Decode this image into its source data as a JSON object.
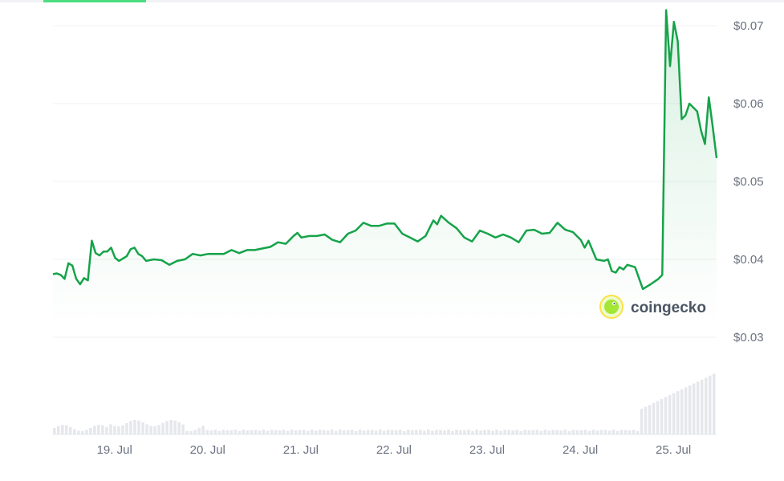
{
  "watermark": {
    "brand": "coingecko"
  },
  "colors": {
    "line": "#16a34a",
    "accent_tab": "#4ade80",
    "grid": "#eef0f3",
    "volume_bar": "#e5e7eb",
    "tick_text": "#6b7280"
  },
  "chart_data": {
    "type": "line",
    "title": "",
    "xlabel": "",
    "ylabel": "",
    "grid": true,
    "area_fill": true,
    "ylim": [
      0.03,
      0.0725
    ],
    "y_ticks": [
      {
        "value": 0.03,
        "label": "$0.03"
      },
      {
        "value": 0.04,
        "label": "$0.04"
      },
      {
        "value": 0.05,
        "label": "$0.05"
      },
      {
        "value": 0.06,
        "label": "$0.06"
      },
      {
        "value": 0.07,
        "label": "$0.07"
      }
    ],
    "xlim": [
      "2024-07-18T10:00",
      "2024-07-25T13:00"
    ],
    "x_ticks": [
      {
        "value": "2024-07-19T00:00",
        "label": "19. Jul"
      },
      {
        "value": "2024-07-20T00:00",
        "label": "20. Jul"
      },
      {
        "value": "2024-07-21T00:00",
        "label": "21. Jul"
      },
      {
        "value": "2024-07-22T00:00",
        "label": "22. Jul"
      },
      {
        "value": "2024-07-23T00:00",
        "label": "23. Jul"
      },
      {
        "value": "2024-07-24T00:00",
        "label": "24. Jul"
      },
      {
        "value": "2024-07-25T00:00",
        "label": "25. Jul"
      }
    ],
    "series": [
      {
        "points": [
          [
            "2024-07-18T10:00",
            0.0381
          ],
          [
            "2024-07-18T11:00",
            0.0382
          ],
          [
            "2024-07-18T12:00",
            0.038
          ],
          [
            "2024-07-18T13:00",
            0.0375
          ],
          [
            "2024-07-18T14:00",
            0.0395
          ],
          [
            "2024-07-18T15:00",
            0.0392
          ],
          [
            "2024-07-18T16:00",
            0.0375
          ],
          [
            "2024-07-18T17:00",
            0.0368
          ],
          [
            "2024-07-18T18:00",
            0.0376
          ],
          [
            "2024-07-18T19:00",
            0.0373
          ],
          [
            "2024-07-18T20:00",
            0.0424
          ],
          [
            "2024-07-18T21:00",
            0.0408
          ],
          [
            "2024-07-18T22:00",
            0.0405
          ],
          [
            "2024-07-18T23:00",
            0.041
          ],
          [
            "2024-07-19T00:00",
            0.041
          ],
          [
            "2024-07-19T01:00",
            0.0415
          ],
          [
            "2024-07-19T02:00",
            0.0402
          ],
          [
            "2024-07-19T03:00",
            0.0398
          ],
          [
            "2024-07-19T04:00",
            0.0401
          ],
          [
            "2024-07-19T05:00",
            0.0404
          ],
          [
            "2024-07-19T06:00",
            0.0413
          ],
          [
            "2024-07-19T07:00",
            0.0415
          ],
          [
            "2024-07-19T08:00",
            0.0407
          ],
          [
            "2024-07-19T09:00",
            0.0404
          ],
          [
            "2024-07-19T10:00",
            0.0398
          ],
          [
            "2024-07-19T12:00",
            0.04
          ],
          [
            "2024-07-19T14:00",
            0.0399
          ],
          [
            "2024-07-19T16:00",
            0.0393
          ],
          [
            "2024-07-19T18:00",
            0.0398
          ],
          [
            "2024-07-19T20:00",
            0.04
          ],
          [
            "2024-07-19T22:00",
            0.0407
          ],
          [
            "2024-07-20T00:00",
            0.0405
          ],
          [
            "2024-07-20T02:00",
            0.0407
          ],
          [
            "2024-07-20T04:00",
            0.0407
          ],
          [
            "2024-07-20T06:00",
            0.0407
          ],
          [
            "2024-07-20T08:00",
            0.0412
          ],
          [
            "2024-07-20T10:00",
            0.0408
          ],
          [
            "2024-07-20T12:00",
            0.0412
          ],
          [
            "2024-07-20T14:00",
            0.0412
          ],
          [
            "2024-07-20T16:00",
            0.0414
          ],
          [
            "2024-07-20T18:00",
            0.0416
          ],
          [
            "2024-07-20T20:00",
            0.0422
          ],
          [
            "2024-07-20T22:00",
            0.042
          ],
          [
            "2024-07-21T00:00",
            0.043
          ],
          [
            "2024-07-21T01:00",
            0.0434
          ],
          [
            "2024-07-21T02:00",
            0.0428
          ],
          [
            "2024-07-21T04:00",
            0.043
          ],
          [
            "2024-07-21T06:00",
            0.043
          ],
          [
            "2024-07-21T08:00",
            0.0432
          ],
          [
            "2024-07-21T10:00",
            0.0425
          ],
          [
            "2024-07-21T12:00",
            0.0422
          ],
          [
            "2024-07-21T14:00",
            0.0433
          ],
          [
            "2024-07-21T16:00",
            0.0437
          ],
          [
            "2024-07-21T18:00",
            0.0447
          ],
          [
            "2024-07-21T20:00",
            0.0443
          ],
          [
            "2024-07-21T22:00",
            0.0443
          ],
          [
            "2024-07-22T00:00",
            0.0446
          ],
          [
            "2024-07-22T02:00",
            0.0446
          ],
          [
            "2024-07-22T04:00",
            0.0433
          ],
          [
            "2024-07-22T06:00",
            0.0428
          ],
          [
            "2024-07-22T08:00",
            0.0423
          ],
          [
            "2024-07-22T10:00",
            0.043
          ],
          [
            "2024-07-22T12:00",
            0.045
          ],
          [
            "2024-07-22T13:00",
            0.0445
          ],
          [
            "2024-07-22T14:00",
            0.0456
          ],
          [
            "2024-07-22T16:00",
            0.0447
          ],
          [
            "2024-07-22T18:00",
            0.044
          ],
          [
            "2024-07-22T20:00",
            0.0428
          ],
          [
            "2024-07-22T22:00",
            0.0423
          ],
          [
            "2024-07-23T00:00",
            0.0437
          ],
          [
            "2024-07-23T02:00",
            0.0433
          ],
          [
            "2024-07-23T04:00",
            0.0428
          ],
          [
            "2024-07-23T06:00",
            0.0432
          ],
          [
            "2024-07-23T08:00",
            0.0428
          ],
          [
            "2024-07-23T10:00",
            0.0422
          ],
          [
            "2024-07-23T12:00",
            0.0437
          ],
          [
            "2024-07-23T14:00",
            0.0438
          ],
          [
            "2024-07-23T16:00",
            0.0433
          ],
          [
            "2024-07-23T18:00",
            0.0434
          ],
          [
            "2024-07-23T20:00",
            0.0447
          ],
          [
            "2024-07-23T22:00",
            0.0438
          ],
          [
            "2024-07-24T00:00",
            0.0435
          ],
          [
            "2024-07-24T02:00",
            0.0425
          ],
          [
            "2024-07-24T03:00",
            0.0415
          ],
          [
            "2024-07-24T04:00",
            0.0424
          ],
          [
            "2024-07-24T06:00",
            0.04
          ],
          [
            "2024-07-24T08:00",
            0.0398
          ],
          [
            "2024-07-24T09:00",
            0.04
          ],
          [
            "2024-07-24T10:00",
            0.0385
          ],
          [
            "2024-07-24T11:00",
            0.0383
          ],
          [
            "2024-07-24T12:00",
            0.039
          ],
          [
            "2024-07-24T13:00",
            0.0387
          ],
          [
            "2024-07-24T14:00",
            0.0393
          ],
          [
            "2024-07-24T16:00",
            0.039
          ],
          [
            "2024-07-24T18:00",
            0.0362
          ],
          [
            "2024-07-24T20:00",
            0.0368
          ],
          [
            "2024-07-24T22:00",
            0.0375
          ],
          [
            "2024-07-24T23:00",
            0.038
          ],
          [
            "2024-07-25T00:00",
            0.072
          ],
          [
            "2024-07-25T01:00",
            0.0648
          ],
          [
            "2024-07-25T02:00",
            0.0705
          ],
          [
            "2024-07-25T03:00",
            0.068
          ],
          [
            "2024-07-25T04:00",
            0.058
          ],
          [
            "2024-07-25T05:00",
            0.0585
          ],
          [
            "2024-07-25T06:00",
            0.06
          ],
          [
            "2024-07-25T07:00",
            0.0595
          ],
          [
            "2024-07-25T08:00",
            0.059
          ],
          [
            "2024-07-25T09:00",
            0.0565
          ],
          [
            "2024-07-25T10:00",
            0.0548
          ],
          [
            "2024-07-25T11:00",
            0.0608
          ],
          [
            "2024-07-25T12:00",
            0.057
          ],
          [
            "2024-07-25T13:00",
            0.053
          ]
        ]
      }
    ]
  }
}
